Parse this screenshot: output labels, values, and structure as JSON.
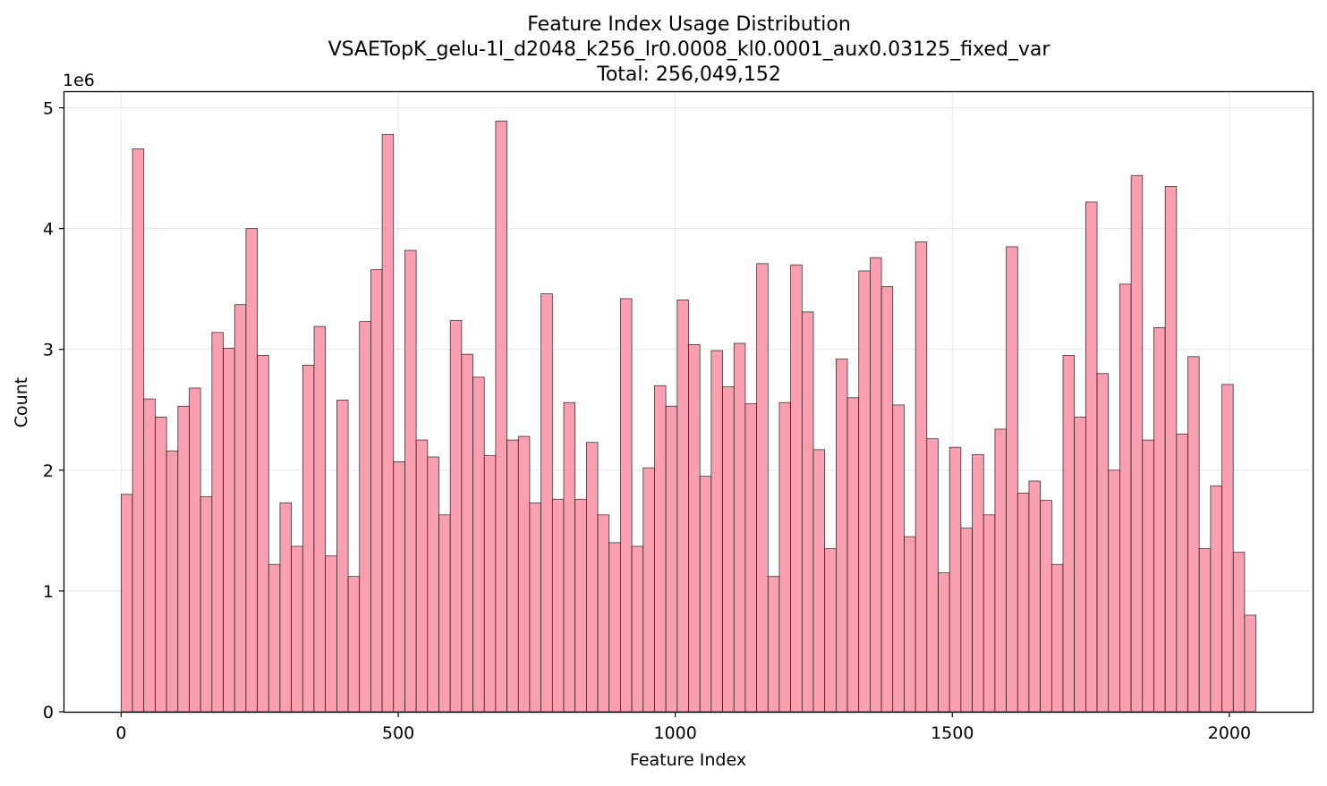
{
  "chart_data": {
    "type": "bar",
    "title": "Feature Index Usage Distribution",
    "subtitle": "VSAETopK_gelu-1l_d2048_k256_lr0.0008_kl0.0001_aux0.03125_fixed_var",
    "total_label": "Total: 256,049,152",
    "xlabel": "Feature Index",
    "ylabel": "Count",
    "y_offset_label": "1e6",
    "xlim": [
      -102.4,
      2150.4
    ],
    "ylim": [
      0,
      5130000
    ],
    "x_ticks": [
      0,
      500,
      1000,
      1500,
      2000
    ],
    "x_tick_labels": [
      "0",
      "500",
      "1000",
      "1500",
      "2000"
    ],
    "y_ticks": [
      0,
      1000000,
      2000000,
      3000000,
      4000000,
      5000000
    ],
    "y_tick_labels": [
      "0",
      "1",
      "2",
      "3",
      "4",
      "5"
    ],
    "grid": true,
    "bar_color": "#fa9fb0",
    "edge_color": "#000000",
    "bin_start": 0,
    "bin_width": 20.48,
    "values": [
      1800000,
      4660000,
      2590000,
      2440000,
      2160000,
      2530000,
      2680000,
      1780000,
      3140000,
      3010000,
      3370000,
      4000000,
      2950000,
      1220000,
      1730000,
      1370000,
      2870000,
      3190000,
      1290000,
      2580000,
      1120000,
      3230000,
      3660000,
      4780000,
      2070000,
      3820000,
      2250000,
      2110000,
      1630000,
      3240000,
      2960000,
      2770000,
      2120000,
      4890000,
      2250000,
      2280000,
      1730000,
      3460000,
      1760000,
      2560000,
      1760000,
      2230000,
      1630000,
      1400000,
      3420000,
      1370000,
      2020000,
      2700000,
      2530000,
      3410000,
      3040000,
      1950000,
      2990000,
      2690000,
      3050000,
      2550000,
      3710000,
      1120000,
      2560000,
      3700000,
      3310000,
      2170000,
      1350000,
      2920000,
      2600000,
      3650000,
      3760000,
      3520000,
      2540000,
      1450000,
      3890000,
      2260000,
      1150000,
      2190000,
      1520000,
      2130000,
      1630000,
      2340000,
      3850000,
      1810000,
      1910000,
      1750000,
      1220000,
      2950000,
      2440000,
      4220000,
      2800000,
      2000000,
      3540000,
      4440000,
      2250000,
      3180000,
      4350000,
      2300000,
      2940000,
      1350000,
      1870000,
      2710000,
      1320000,
      800000
    ]
  }
}
